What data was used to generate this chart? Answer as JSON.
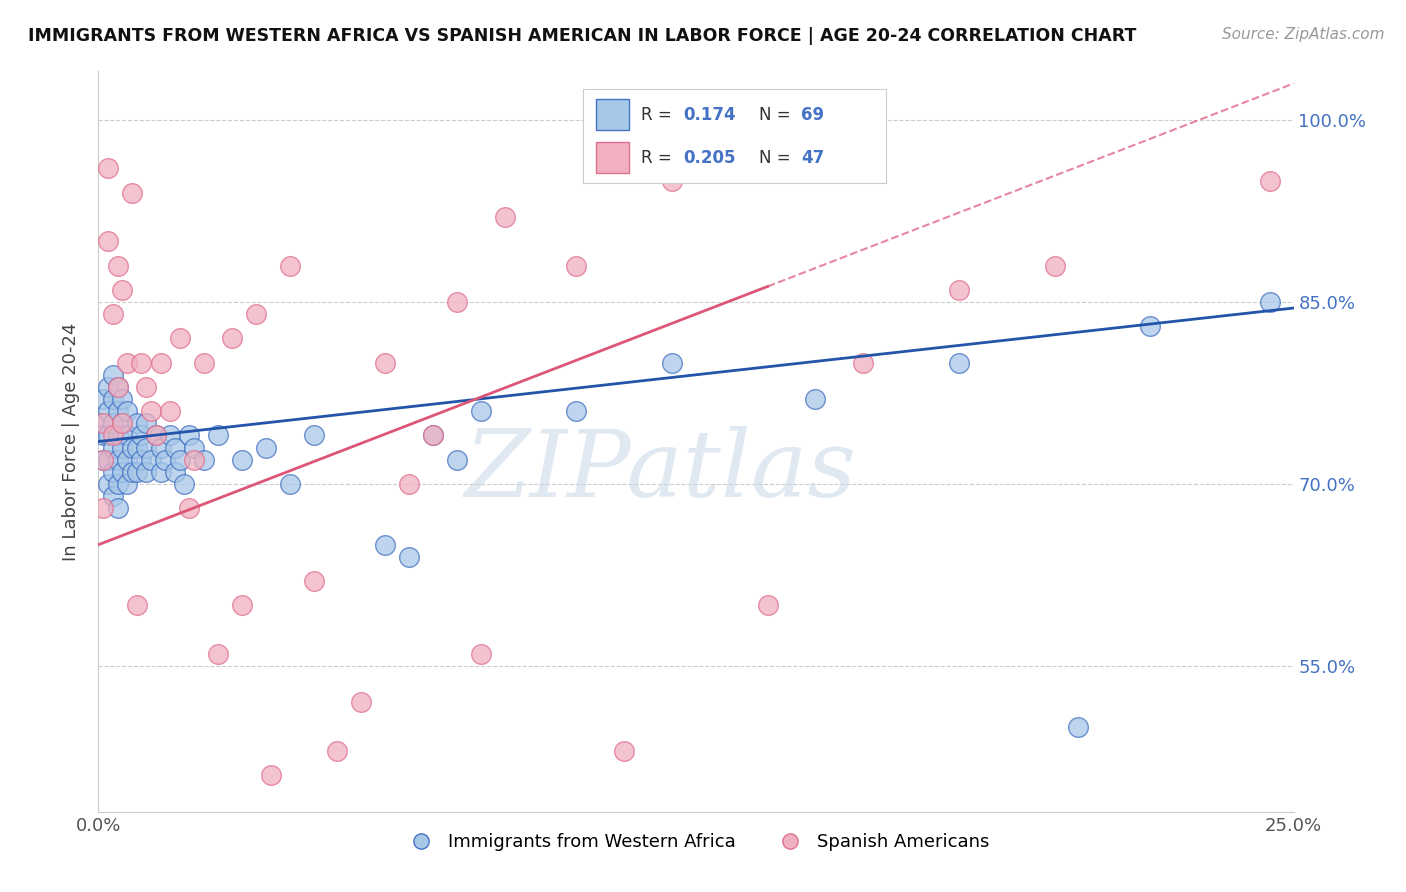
{
  "title": "IMMIGRANTS FROM WESTERN AFRICA VS SPANISH AMERICAN IN LABOR FORCE | AGE 20-24 CORRELATION CHART",
  "source": "Source: ZipAtlas.com",
  "ylabel": "In Labor Force | Age 20-24",
  "xlim": [
    0.0,
    0.25
  ],
  "ylim": [
    0.43,
    1.04
  ],
  "yticks": [
    0.55,
    0.7,
    0.85,
    1.0
  ],
  "ytick_labels": [
    "55.0%",
    "70.0%",
    "85.0%",
    "100.0%"
  ],
  "xticks": [
    0.0,
    0.05,
    0.1,
    0.15,
    0.2,
    0.25
  ],
  "xtick_labels": [
    "0.0%",
    "",
    "",
    "",
    "",
    "25.0%"
  ],
  "blue_color": "#a8c8e8",
  "pink_color": "#f0b0c0",
  "blue_edge_color": "#4472c4",
  "pink_edge_color": "#e07090",
  "blue_line_color": "#2255aa",
  "pink_line_color": "#dd5577",
  "watermark": "ZIPatlas",
  "watermark_color": "#c8d8e8",
  "blue_x": [
    0.001,
    0.001,
    0.001,
    0.001,
    0.002,
    0.002,
    0.002,
    0.002,
    0.002,
    0.003,
    0.003,
    0.003,
    0.003,
    0.003,
    0.003,
    0.004,
    0.004,
    0.004,
    0.004,
    0.004,
    0.004,
    0.005,
    0.005,
    0.005,
    0.005,
    0.006,
    0.006,
    0.006,
    0.006,
    0.007,
    0.007,
    0.008,
    0.008,
    0.008,
    0.009,
    0.009,
    0.01,
    0.01,
    0.01,
    0.011,
    0.012,
    0.013,
    0.013,
    0.014,
    0.015,
    0.016,
    0.016,
    0.017,
    0.018,
    0.019,
    0.02,
    0.022,
    0.025,
    0.03,
    0.035,
    0.04,
    0.045,
    0.06,
    0.065,
    0.07,
    0.075,
    0.08,
    0.1,
    0.12,
    0.15,
    0.18,
    0.205,
    0.22,
    0.245
  ],
  "blue_y": [
    0.75,
    0.77,
    0.74,
    0.72,
    0.76,
    0.74,
    0.72,
    0.78,
    0.7,
    0.75,
    0.77,
    0.73,
    0.71,
    0.79,
    0.69,
    0.76,
    0.74,
    0.72,
    0.7,
    0.78,
    0.68,
    0.75,
    0.73,
    0.71,
    0.77,
    0.74,
    0.72,
    0.76,
    0.7,
    0.73,
    0.71,
    0.75,
    0.73,
    0.71,
    0.74,
    0.72,
    0.73,
    0.71,
    0.75,
    0.72,
    0.74,
    0.73,
    0.71,
    0.72,
    0.74,
    0.73,
    0.71,
    0.72,
    0.7,
    0.74,
    0.73,
    0.72,
    0.74,
    0.72,
    0.73,
    0.7,
    0.74,
    0.65,
    0.64,
    0.74,
    0.72,
    0.76,
    0.76,
    0.8,
    0.77,
    0.8,
    0.5,
    0.83,
    0.85
  ],
  "pink_x": [
    0.001,
    0.001,
    0.001,
    0.002,
    0.002,
    0.003,
    0.003,
    0.004,
    0.004,
    0.005,
    0.005,
    0.006,
    0.007,
    0.008,
    0.009,
    0.01,
    0.011,
    0.012,
    0.013,
    0.015,
    0.017,
    0.019,
    0.02,
    0.022,
    0.025,
    0.028,
    0.03,
    0.033,
    0.036,
    0.04,
    0.045,
    0.05,
    0.055,
    0.06,
    0.065,
    0.07,
    0.075,
    0.08,
    0.085,
    0.1,
    0.11,
    0.12,
    0.14,
    0.16,
    0.18,
    0.2,
    0.245
  ],
  "pink_y": [
    0.75,
    0.72,
    0.68,
    0.9,
    0.96,
    0.74,
    0.84,
    0.88,
    0.78,
    0.86,
    0.75,
    0.8,
    0.94,
    0.6,
    0.8,
    0.78,
    0.76,
    0.74,
    0.8,
    0.76,
    0.82,
    0.68,
    0.72,
    0.8,
    0.56,
    0.82,
    0.6,
    0.84,
    0.46,
    0.88,
    0.62,
    0.48,
    0.52,
    0.8,
    0.7,
    0.74,
    0.85,
    0.56,
    0.92,
    0.88,
    0.48,
    0.95,
    0.6,
    0.8,
    0.86,
    0.88,
    0.95
  ]
}
